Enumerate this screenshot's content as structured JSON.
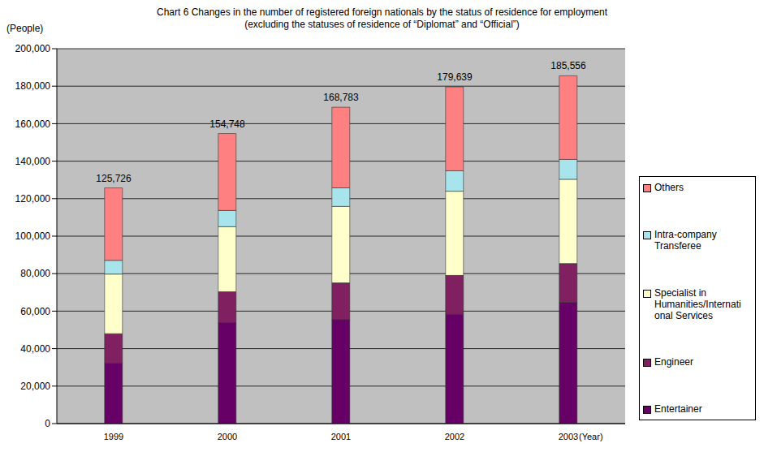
{
  "chart_data": {
    "type": "bar",
    "title": "Chart 6 Changes in the number of registered foreign nationals by the status of residence for employment",
    "subtitle": "(excluding the statuses of residence of “Diplomat” and “Official”)",
    "y_label": "(People)",
    "x_label": "(Year)",
    "categories": [
      "1999",
      "2000",
      "2001",
      "2002",
      "2003"
    ],
    "series": [
      {
        "name": "Entertainer",
        "color": "#660066",
        "values": [
          32297,
          53847,
          55461,
          58359,
          64642
        ]
      },
      {
        "name": "Engineer",
        "color": "#802060",
        "values": [
          15668,
          16500,
          19600,
          20700,
          20800
        ]
      },
      {
        "name": "Specialist in Humanities/International Services",
        "color": "#FFFFCC",
        "values": [
          31797,
          34700,
          40800,
          44900,
          44900
        ]
      },
      {
        "name": "Intra-company Transferee",
        "color": "#A8E4EC",
        "values": [
          7330,
          8650,
          9900,
          10900,
          10600
        ]
      },
      {
        "name": "Others",
        "color": "#FF8080",
        "values": [
          38634,
          41051,
          43022,
          44780,
          44614
        ]
      }
    ],
    "totals": {
      "values": [
        125726,
        154748,
        168783,
        179639,
        185556
      ],
      "value_labels": [
        "125,726",
        "154,748",
        "168,783",
        "179,639",
        "185,556"
      ]
    },
    "ylim": [
      0,
      200000
    ],
    "yticks": [
      0,
      {
        "value": 20000,
        "label": "20,000"
      },
      {
        "value": 40000,
        "label": "40,000"
      },
      {
        "value": 60000,
        "label": "60,000"
      },
      {
        "value": 80000,
        "label": "80,000"
      },
      {
        "value": 100000,
        "label": "100,000"
      },
      {
        "value": 120000,
        "label": "120,000"
      },
      {
        "value": 140000,
        "label": "140,000"
      },
      {
        "value": 160000,
        "label": "160,000"
      },
      {
        "value": 180000,
        "label": "180,000"
      },
      {
        "value": 200000,
        "label": "200,000"
      }
    ],
    "stacked": true,
    "grid": true,
    "legend": "right"
  }
}
